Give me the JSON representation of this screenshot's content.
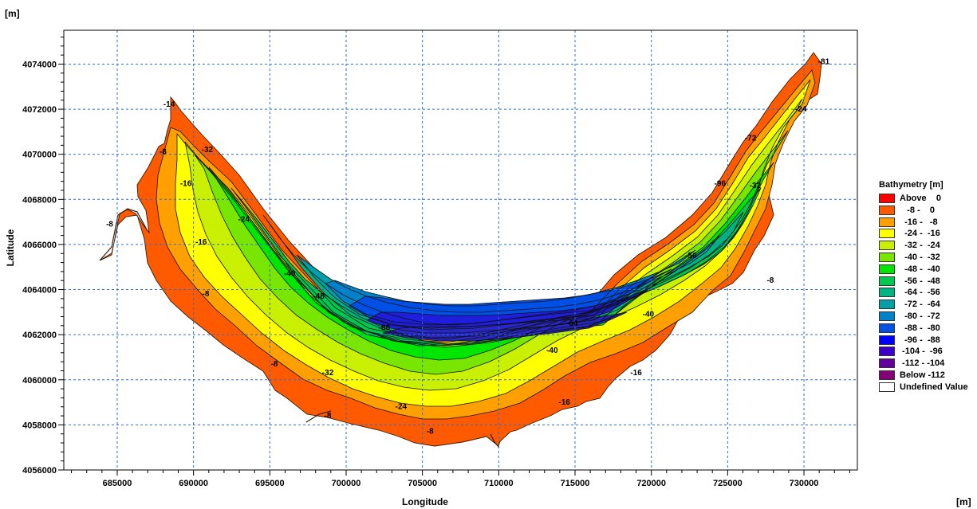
{
  "chart_data": {
    "type": "contour",
    "title": "",
    "xlabel": "Longitude",
    "ylabel": "Latitude",
    "x_unit": "[m]",
    "y_unit": "[m]",
    "xlim": [
      681500,
      733500
    ],
    "ylim": [
      4056000,
      4075500
    ],
    "x_ticks": [
      685000,
      690000,
      695000,
      700000,
      705000,
      710000,
      715000,
      720000,
      725000,
      730000
    ],
    "y_ticks": [
      4056000,
      4058000,
      4060000,
      4062000,
      4064000,
      4066000,
      4068000,
      4070000,
      4072000,
      4074000
    ],
    "grid": true,
    "legend": {
      "title": "Bathymetry [m]",
      "placement": "right",
      "items": [
        {
          "label": "Above    0",
          "color": "#ff0000"
        },
        {
          "label": "   -8 -    0",
          "color": "#ff5a00"
        },
        {
          "label": "  -16 -   -8",
          "color": "#ffa000"
        },
        {
          "label": "  -24 -  -16",
          "color": "#ffff00"
        },
        {
          "label": "  -32 -  -24",
          "color": "#c8f000"
        },
        {
          "label": "  -40 -  -32",
          "color": "#78e600"
        },
        {
          "label": "  -48 -  -40",
          "color": "#00e600"
        },
        {
          "label": "  -56 -  -48",
          "color": "#00c850"
        },
        {
          "label": "  -64 -  -56",
          "color": "#00b482"
        },
        {
          "label": "  -72 -  -64",
          "color": "#00a0aa"
        },
        {
          "label": "  -80 -  -72",
          "color": "#0082c8"
        },
        {
          "label": "  -88 -  -80",
          "color": "#0050e6"
        },
        {
          "label": "  -96 -  -88",
          "color": "#0000ff"
        },
        {
          "label": " -104 -  -96",
          "color": "#3c00c8"
        },
        {
          "label": " -112 - -104",
          "color": "#6400a0"
        },
        {
          "label": "Below -112",
          "color": "#820078"
        },
        {
          "label": "Undefined Value",
          "color": "#ffffff"
        }
      ]
    },
    "contour_labels": [
      {
        "text": "-8",
        "x": 684500,
        "y": 4066800
      },
      {
        "text": "-8",
        "x": 690800,
        "y": 4063700
      },
      {
        "text": "-8",
        "x": 695300,
        "y": 4060600
      },
      {
        "text": "-8",
        "x": 698800,
        "y": 4058300
      },
      {
        "text": "-8",
        "x": 705500,
        "y": 4057600
      },
      {
        "text": "-8",
        "x": 727800,
        "y": 4064300
      },
      {
        "text": "-16",
        "x": 689500,
        "y": 4068600
      },
      {
        "text": "-16",
        "x": 690500,
        "y": 4066000
      },
      {
        "text": "-16",
        "x": 714300,
        "y": 4058900
      },
      {
        "text": "-16",
        "x": 719000,
        "y": 4060200
      },
      {
        "text": "-24",
        "x": 693300,
        "y": 4067000
      },
      {
        "text": "-24",
        "x": 703600,
        "y": 4058700
      },
      {
        "text": "-24",
        "x": 729800,
        "y": 4071900
      },
      {
        "text": "-32",
        "x": 690900,
        "y": 4070100
      },
      {
        "text": "-32",
        "x": 698800,
        "y": 4060200
      },
      {
        "text": "-32",
        "x": 726800,
        "y": 4068500
      },
      {
        "text": "-40",
        "x": 696300,
        "y": 4064600
      },
      {
        "text": "-40",
        "x": 713500,
        "y": 4061200
      },
      {
        "text": "-40",
        "x": 719800,
        "y": 4062800
      },
      {
        "text": "-48",
        "x": 698200,
        "y": 4063600
      },
      {
        "text": "-56",
        "x": 722600,
        "y": 4065400
      },
      {
        "text": "-64",
        "x": 714800,
        "y": 4062400
      },
      {
        "text": "-72",
        "x": 726500,
        "y": 4070600
      },
      {
        "text": "-88",
        "x": 702500,
        "y": 4062200
      },
      {
        "text": "-96",
        "x": 724500,
        "y": 4068600
      },
      {
        "text": "-14",
        "x": 688400,
        "y": 4072100
      },
      {
        "text": "-8",
        "x": 688000,
        "y": 4070000
      },
      {
        "text": "-81",
        "x": 731300,
        "y": 4074000
      }
    ]
  }
}
